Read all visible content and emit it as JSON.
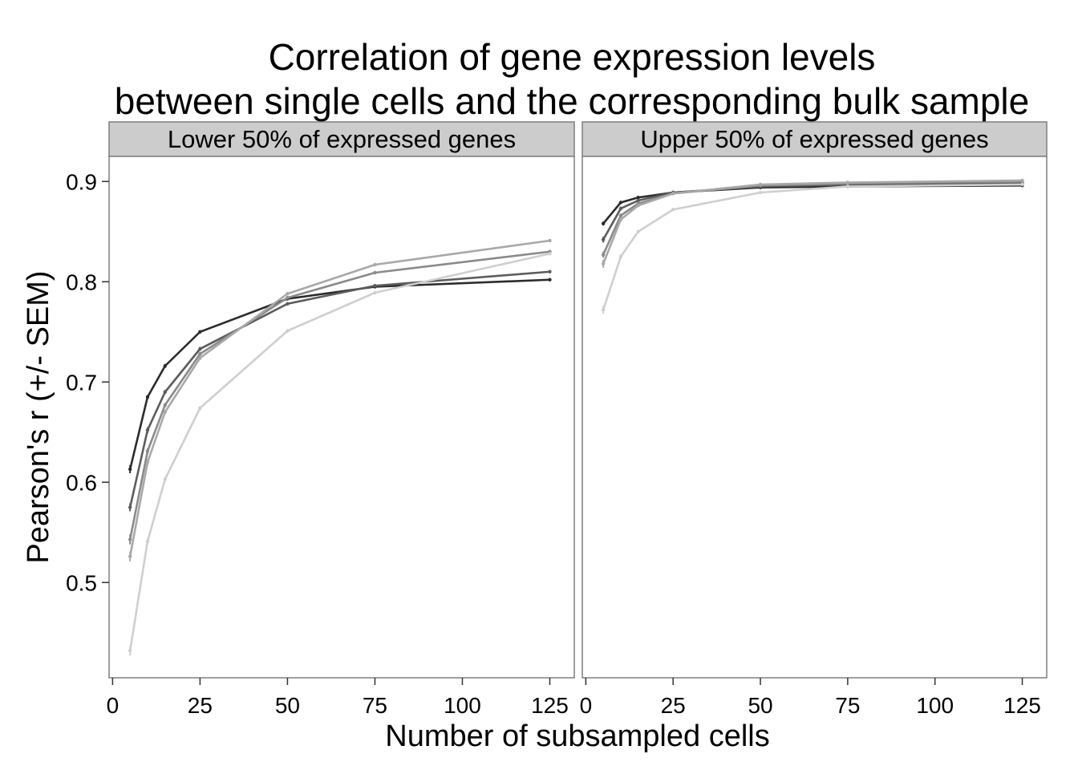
{
  "chart_data": {
    "type": "line",
    "title_lines": [
      "Correlation of gene expression levels",
      "between single cells and the corresponding bulk sample"
    ],
    "xlabel": "Number of subsampled cells",
    "ylabel": "Pearson's r (+/- SEM)",
    "xlim": [
      -1,
      132
    ],
    "ylim": [
      0.405,
      0.925
    ],
    "x_ticks": [
      0,
      25,
      50,
      75,
      100,
      125
    ],
    "x_tick_labels": [
      "0",
      "25",
      "50",
      "75",
      "100",
      "125"
    ],
    "y_ticks": [
      0.5,
      0.6,
      0.7,
      0.8,
      0.9
    ],
    "y_tick_labels": [
      "0.5",
      "0.6",
      "0.7",
      "0.8",
      "0.9"
    ],
    "grid": false,
    "legend": "none",
    "x": [
      5,
      10,
      15,
      25,
      50,
      75,
      125
    ],
    "series_colors": [
      "#2b2b2b",
      "#5c5c5c",
      "#8a8a8a",
      "#a8a8a8",
      "#cfcfcf"
    ],
    "panels": [
      {
        "label": "Lower 50% of expressed genes",
        "series": [
          {
            "values": [
              0.613,
              0.685,
              0.716,
              0.75,
              0.783,
              0.795,
              0.802
            ],
            "sem": [
              0.004,
              0.002,
              0.002,
              0.001,
              0.001,
              0.001,
              0.001
            ]
          },
          {
            "values": [
              0.575,
              0.652,
              0.69,
              0.733,
              0.778,
              0.796,
              0.81
            ],
            "sem": [
              0.004,
              0.003,
              0.002,
              0.002,
              0.001,
              0.001,
              0.001
            ]
          },
          {
            "values": [
              0.543,
              0.631,
              0.677,
              0.728,
              0.784,
              0.809,
              0.83
            ],
            "sem": [
              0.005,
              0.003,
              0.002,
              0.002,
              0.001,
              0.001,
              0.001
            ]
          },
          {
            "values": [
              0.526,
              0.62,
              0.67,
              0.724,
              0.788,
              0.817,
              0.841
            ],
            "sem": [
              0.005,
              0.003,
              0.002,
              0.002,
              0.001,
              0.001,
              0.001
            ]
          },
          {
            "values": [
              0.432,
              0.541,
              0.603,
              0.674,
              0.751,
              0.789,
              0.828
            ],
            "sem": [
              0.005,
              0.003,
              0.002,
              0.002,
              0.001,
              0.001,
              0.001
            ]
          }
        ]
      },
      {
        "label": "Upper 50% of expressed genes",
        "series": [
          {
            "values": [
              0.858,
              0.879,
              0.884,
              0.889,
              0.894,
              0.895,
              0.896
            ],
            "sem": [
              0.002,
              0.001,
              0.001,
              0.001,
              0.001,
              0.001,
              0.001
            ]
          },
          {
            "values": [
              0.842,
              0.873,
              0.881,
              0.889,
              0.895,
              0.897,
              0.898
            ],
            "sem": [
              0.003,
              0.002,
              0.001,
              0.001,
              0.001,
              0.001,
              0.001
            ]
          },
          {
            "values": [
              0.827,
              0.866,
              0.878,
              0.888,
              0.896,
              0.898,
              0.9
            ],
            "sem": [
              0.003,
              0.002,
              0.001,
              0.001,
              0.001,
              0.001,
              0.001
            ]
          },
          {
            "values": [
              0.818,
              0.862,
              0.876,
              0.888,
              0.897,
              0.899,
              0.901
            ],
            "sem": [
              0.004,
              0.002,
              0.001,
              0.001,
              0.001,
              0.001,
              0.001
            ]
          },
          {
            "values": [
              0.772,
              0.825,
              0.85,
              0.872,
              0.889,
              0.895,
              0.897
            ],
            "sem": [
              0.004,
              0.002,
              0.001,
              0.001,
              0.001,
              0.001,
              0.001
            ]
          }
        ]
      }
    ]
  }
}
